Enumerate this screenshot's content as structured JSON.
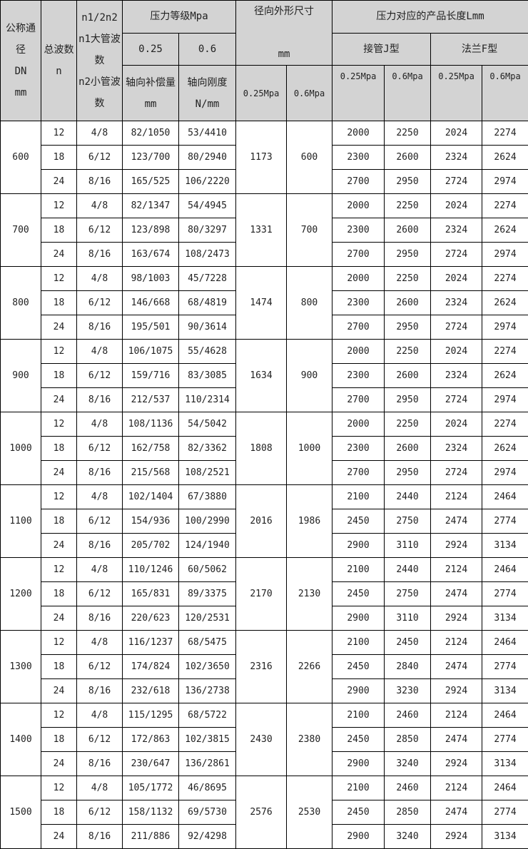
{
  "header": {
    "dn": "公称通\n径\nDN\nmm",
    "n": "总波数\nn",
    "n1n2": "n1/2n2\nn1大管波\n数\nn2小管波\n数",
    "pressure_grade": "压力等级Mpa",
    "p025": "0.25",
    "p06": "0.6",
    "compensation": "轴向补偿量\nmm",
    "stiffness": "轴向刚度\nN/mm",
    "outer_size": "径向外形尺寸\n\nmm",
    "outer_025": "0.25Mpa",
    "outer_06": "0.6Mpa",
    "length": "压力对应的产品长度Lmm",
    "type_j": "接管J型",
    "type_f": "法兰F型",
    "j025": "0.25Mpa",
    "j06": "0.6Mpa",
    "f025": "0.25Mpa",
    "f06": "0.6Mpa"
  },
  "groups": [
    {
      "dn": "600",
      "outer_025": "1173",
      "outer_06": "600",
      "rows": [
        [
          "12",
          "4/8",
          "82/1050",
          "53/4410",
          "2000",
          "2250",
          "2024",
          "2274"
        ],
        [
          "18",
          "6/12",
          "123/700",
          "80/2940",
          "2300",
          "2600",
          "2324",
          "2624"
        ],
        [
          "24",
          "8/16",
          "165/525",
          "106/2220",
          "2700",
          "2950",
          "2724",
          "2974"
        ]
      ]
    },
    {
      "dn": "700",
      "outer_025": "1331",
      "outer_06": "700",
      "rows": [
        [
          "12",
          "4/8",
          "82/1347",
          "54/4945",
          "2000",
          "2250",
          "2024",
          "2274"
        ],
        [
          "18",
          "6/12",
          "123/898",
          "80/3297",
          "2300",
          "2600",
          "2324",
          "2624"
        ],
        [
          "24",
          "8/16",
          "163/674",
          "108/2473",
          "2700",
          "2950",
          "2724",
          "2974"
        ]
      ]
    },
    {
      "dn": "800",
      "outer_025": "1474",
      "outer_06": "800",
      "rows": [
        [
          "12",
          "4/8",
          "98/1003",
          "45/7228",
          "2000",
          "2250",
          "2024",
          "2274"
        ],
        [
          "18",
          "6/12",
          "146/668",
          "68/4819",
          "2300",
          "2600",
          "2324",
          "2624"
        ],
        [
          "24",
          "8/16",
          "195/501",
          "90/3614",
          "2700",
          "2950",
          "2724",
          "2974"
        ]
      ]
    },
    {
      "dn": "900",
      "outer_025": "1634",
      "outer_06": "900",
      "rows": [
        [
          "12",
          "4/8",
          "106/1075",
          "55/4628",
          "2000",
          "2250",
          "2024",
          "2274"
        ],
        [
          "18",
          "6/12",
          "159/716",
          "83/3085",
          "2300",
          "2600",
          "2324",
          "2624"
        ],
        [
          "24",
          "8/16",
          "212/537",
          "110/2314",
          "2700",
          "2950",
          "2724",
          "2974"
        ]
      ]
    },
    {
      "dn": "1000",
      "outer_025": "1808",
      "outer_06": "1000",
      "rows": [
        [
          "12",
          "4/8",
          "108/1136",
          "54/5042",
          "2000",
          "2250",
          "2024",
          "2274"
        ],
        [
          "18",
          "6/12",
          "162/758",
          "82/3362",
          "2300",
          "2600",
          "2324",
          "2624"
        ],
        [
          "24",
          "8/16",
          "215/568",
          "108/2521",
          "2700",
          "2950",
          "2724",
          "2974"
        ]
      ]
    },
    {
      "dn": "1100",
      "outer_025": "2016",
      "outer_06": "1986",
      "rows": [
        [
          "12",
          "4/8",
          "102/1404",
          "67/3880",
          "2100",
          "2440",
          "2124",
          "2464"
        ],
        [
          "18",
          "6/12",
          "154/936",
          "100/2990",
          "2450",
          "2750",
          "2474",
          "2774"
        ],
        [
          "24",
          "8/16",
          "205/702",
          "124/1940",
          "2900",
          "3110",
          "2924",
          "3134"
        ]
      ]
    },
    {
      "dn": "1200",
      "outer_025": "2170",
      "outer_06": "2130",
      "rows": [
        [
          "12",
          "4/8",
          "110/1246",
          "60/5062",
          "2100",
          "2440",
          "2124",
          "2464"
        ],
        [
          "18",
          "6/12",
          "165/831",
          "89/3375",
          "2450",
          "2750",
          "2474",
          "2774"
        ],
        [
          "24",
          "8/16",
          "220/623",
          "120/2531",
          "2900",
          "3110",
          "2924",
          "3134"
        ]
      ]
    },
    {
      "dn": "1300",
      "outer_025": "2316",
      "outer_06": "2266",
      "rows": [
        [
          "12",
          "4/8",
          "116/1237",
          "68/5475",
          "2100",
          "2450",
          "2124",
          "2464"
        ],
        [
          "18",
          "6/12",
          "174/824",
          "102/3650",
          "2450",
          "2840",
          "2474",
          "2774"
        ],
        [
          "24",
          "8/16",
          "232/618",
          "136/2738",
          "2900",
          "3230",
          "2924",
          "3134"
        ]
      ]
    },
    {
      "dn": "1400",
      "outer_025": "2430",
      "outer_06": "2380",
      "rows": [
        [
          "12",
          "4/8",
          "115/1295",
          "68/5722",
          "2100",
          "2460",
          "2124",
          "2464"
        ],
        [
          "18",
          "6/12",
          "172/863",
          "102/3815",
          "2450",
          "2850",
          "2474",
          "2774"
        ],
        [
          "24",
          "8/16",
          "230/647",
          "136/2861",
          "2900",
          "3240",
          "2924",
          "3134"
        ]
      ]
    },
    {
      "dn": "1500",
      "outer_025": "2576",
      "outer_06": "2530",
      "rows": [
        [
          "12",
          "4/8",
          "105/1772",
          "46/8695",
          "2100",
          "2460",
          "2124",
          "2464"
        ],
        [
          "18",
          "6/12",
          "158/1132",
          "69/5730",
          "2450",
          "2850",
          "2474",
          "2774"
        ],
        [
          "24",
          "8/16",
          "211/886",
          "92/4298",
          "2900",
          "3240",
          "2924",
          "3134"
        ]
      ]
    }
  ]
}
